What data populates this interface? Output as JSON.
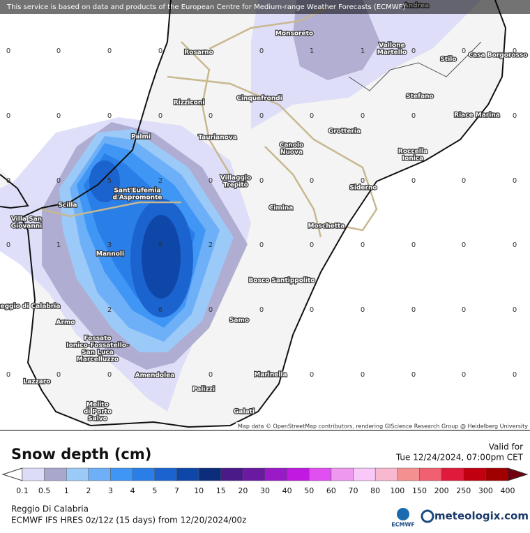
{
  "banner": "This service is based on data and products of the European Centre for Medium-range Weather Forecasts (ECMWF)",
  "attribution": "Map data © OpenStreetMap contributors, rendering GIScience Research Group @ Heidelberg University",
  "places": [
    {
      "lines": [
        "Andrea"
      ]
    },
    {
      "lines": [
        "Monsoreto"
      ]
    },
    {
      "lines": [
        "Rosarno"
      ]
    },
    {
      "lines": [
        "Vallone",
        "Martello"
      ]
    },
    {
      "lines": [
        "Stilo"
      ]
    },
    {
      "lines": [
        "Casa Borgorosso"
      ]
    },
    {
      "lines": [
        "Rizziconi"
      ]
    },
    {
      "lines": [
        "Cinquefrondi"
      ]
    },
    {
      "lines": [
        "Stefano"
      ]
    },
    {
      "lines": [
        "Riace Marina"
      ]
    },
    {
      "lines": [
        "Palmi"
      ]
    },
    {
      "lines": [
        "Taurianova"
      ]
    },
    {
      "lines": [
        "Grotteria"
      ]
    },
    {
      "lines": [
        "Canolo",
        "Nuova"
      ]
    },
    {
      "lines": [
        "Roccella",
        "Ionica"
      ]
    },
    {
      "lines": [
        "Villaggio",
        "Trepitò"
      ]
    },
    {
      "lines": [
        "Sant'Eufemia",
        "d'Aspromonte"
      ]
    },
    {
      "lines": [
        "Siderno"
      ]
    },
    {
      "lines": [
        "Scilla"
      ]
    },
    {
      "lines": [
        "Villa San",
        "Giovanni"
      ]
    },
    {
      "lines": [
        "Cimina"
      ]
    },
    {
      "lines": [
        "Moschetta"
      ]
    },
    {
      "lines": [
        "Mannoli"
      ]
    },
    {
      "lines": [
        "Bosco Santippolito"
      ]
    },
    {
      "lines": [
        "Reggio di Calabria"
      ]
    },
    {
      "lines": [
        "Armo"
      ]
    },
    {
      "lines": [
        "Samo"
      ]
    },
    {
      "lines": [
        "Fossato",
        "Ionico-Fossatello-",
        "San Luca",
        "Marcelluzzo"
      ]
    },
    {
      "lines": [
        "Amendolea"
      ]
    },
    {
      "lines": [
        "Marinella"
      ]
    },
    {
      "lines": [
        "Lazzaro"
      ]
    },
    {
      "lines": [
        "Palizzi"
      ]
    },
    {
      "lines": [
        "Melito",
        "di Porto",
        "Salvo"
      ]
    },
    {
      "lines": [
        "Galati"
      ]
    }
  ],
  "grid_values": [
    [
      0,
      0,
      0,
      0,
      null,
      0,
      1,
      1,
      0,
      0,
      0
    ],
    [
      0,
      0,
      0,
      0,
      0,
      0,
      0,
      0,
      0,
      0,
      0
    ],
    [
      0,
      0,
      5,
      2,
      0,
      0,
      0,
      0,
      0,
      0,
      0
    ],
    [
      0,
      1,
      3,
      8,
      2,
      0,
      0,
      0,
      0,
      0,
      0
    ],
    [
      null,
      null,
      2,
      6,
      0,
      0,
      0,
      0,
      0,
      0,
      0
    ],
    [
      0,
      0,
      0,
      null,
      0,
      null,
      0,
      0,
      0,
      0,
      0
    ]
  ],
  "legend": {
    "title": "Snow depth (cm)",
    "labels": [
      "0.1",
      "0.5",
      "1",
      "2",
      "3",
      "4",
      "5",
      "7",
      "10",
      "15",
      "20",
      "30",
      "40",
      "50",
      "60",
      "70",
      "80",
      "100",
      "150",
      "200",
      "250",
      "300",
      "400"
    ],
    "colors": [
      "#dcdcf8",
      "#aaa7cd",
      "#9ccaf8",
      "#6eb0f8",
      "#3f96f5",
      "#2a7ee8",
      "#1b63cf",
      "#0f47a8",
      "#0c2c7c",
      "#4a1a88",
      "#6a1aa0",
      "#9a1ac8",
      "#c01ae0",
      "#e050f0",
      "#ee98f0",
      "#f8c8f8",
      "#f8b8d0",
      "#f59090",
      "#f06070",
      "#e01a3a",
      "#c00010",
      "#a00000"
    ],
    "over_color": "#700010"
  },
  "valid_label": "Valid for",
  "valid_time": "Tue 12/24/2024, 07:00pm CET",
  "location": "Reggio Di Calabria",
  "model": "ECMWF IFS HRES 0z/12z (15 days) from 12/20/2024/00z",
  "logo_left": "ECMWF",
  "logo_right": "meteologix.com"
}
